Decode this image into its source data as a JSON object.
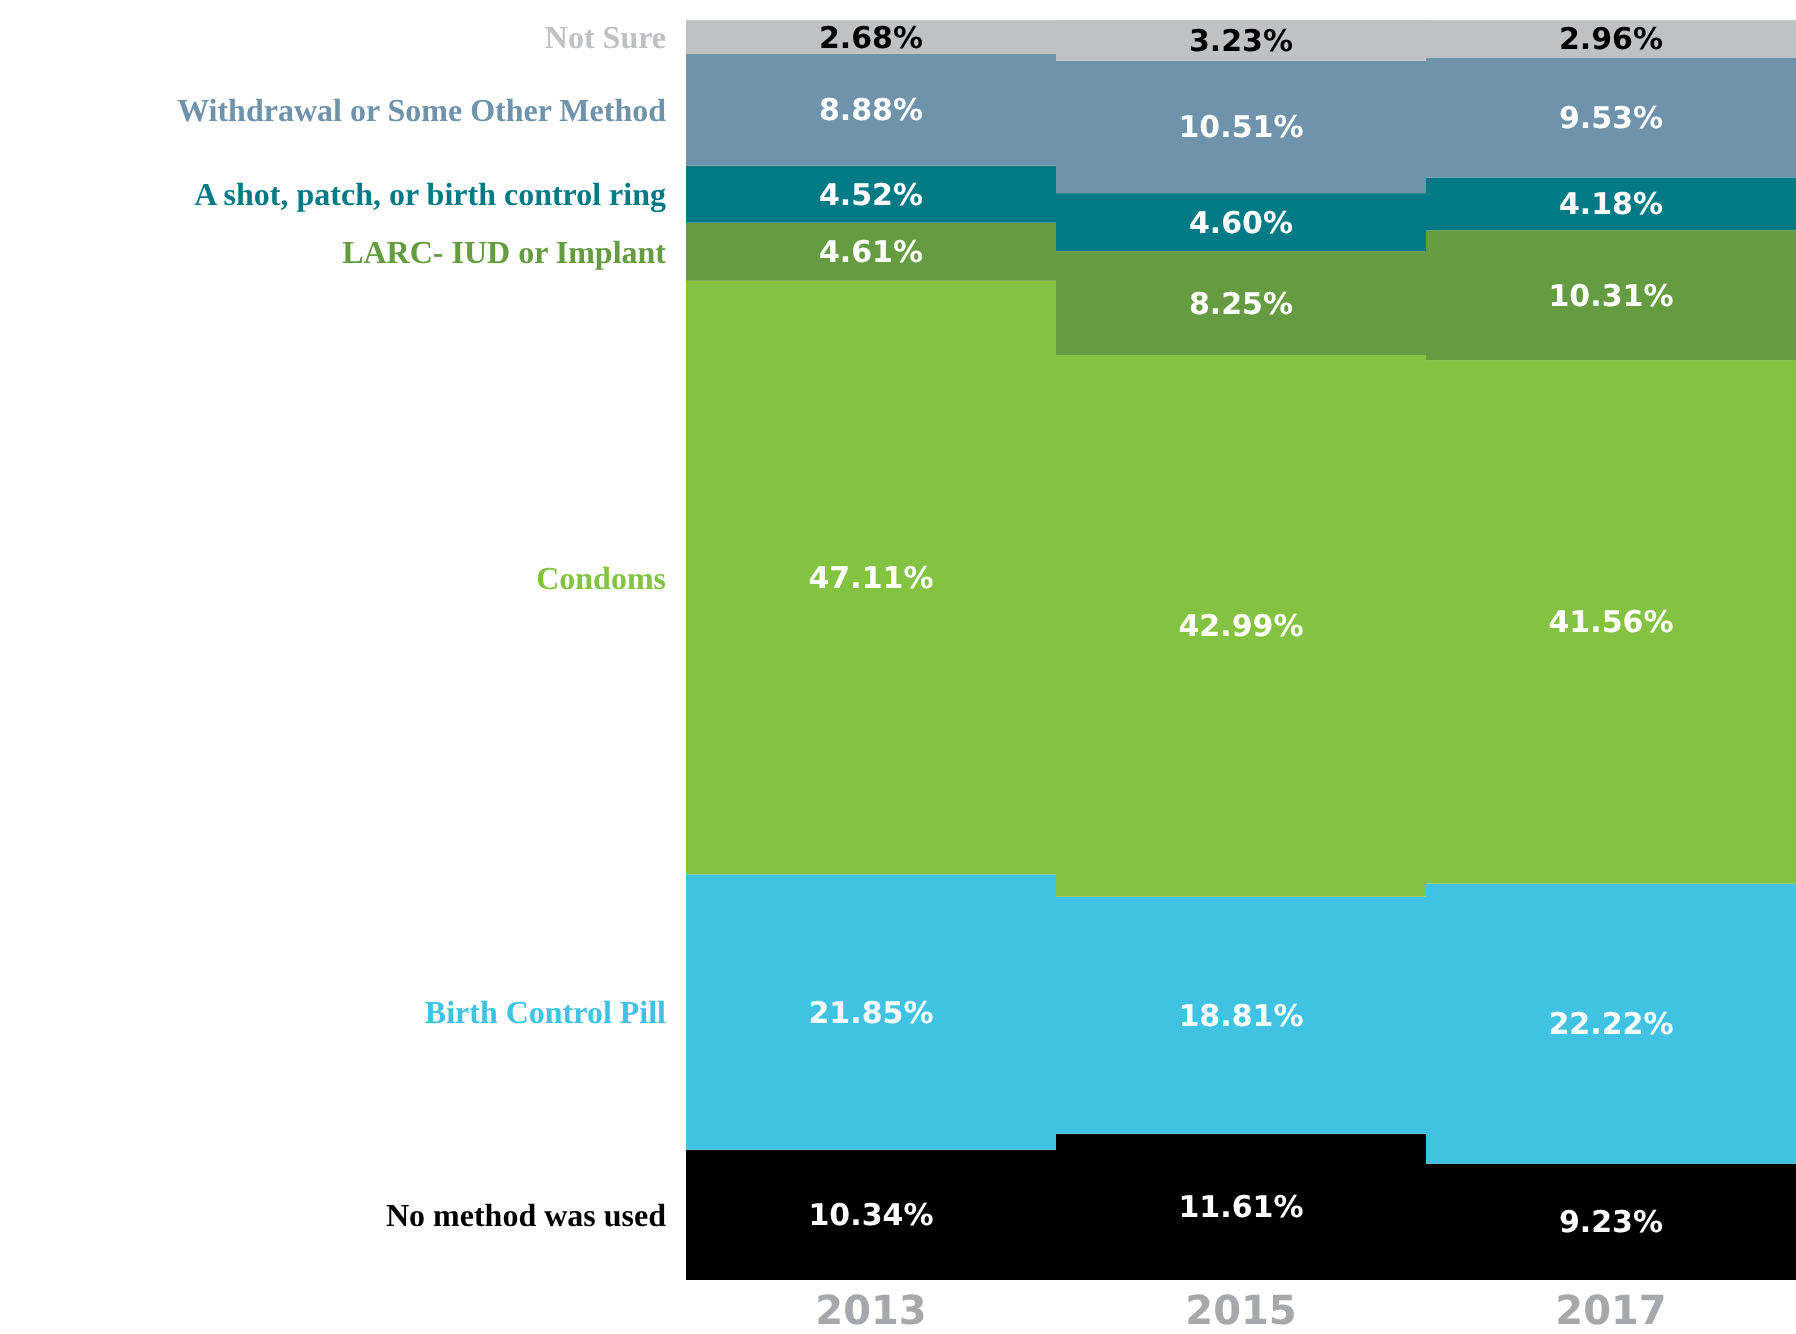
{
  "chart_data": {
    "type": "bar",
    "stacked": true,
    "categories": [
      "2013",
      "2015",
      "2017"
    ],
    "series": [
      {
        "name": "No method was used",
        "color": "#000000",
        "values": [
          10.34,
          11.61,
          9.23
        ],
        "value_labels": [
          "10.34%",
          "11.61%",
          "9.23%"
        ]
      },
      {
        "name": "Birth Control Pill",
        "color": "#40c3e3",
        "values": [
          21.85,
          18.81,
          22.22
        ],
        "value_labels": [
          "21.85%",
          "18.81%",
          "22.22%"
        ]
      },
      {
        "name": "Condoms",
        "color": "#84c341",
        "values": [
          47.11,
          42.99,
          41.56
        ],
        "value_labels": [
          "47.11%",
          "42.99%",
          "41.56%"
        ]
      },
      {
        "name": "LARC- IUD or Implant",
        "color": "#659c41",
        "values": [
          4.61,
          8.25,
          10.31
        ],
        "value_labels": [
          "4.61%",
          "8.25%",
          "10.31%"
        ]
      },
      {
        "name": "A shot, patch, or birth control ring",
        "color": "#007a85",
        "values": [
          4.52,
          4.6,
          4.18
        ],
        "value_labels": [
          "4.52%",
          "4.60%",
          "4.18%"
        ]
      },
      {
        "name": "Withdrawal or Some Other Method",
        "color": "#6e93ab",
        "values": [
          8.88,
          10.51,
          9.53
        ],
        "value_labels": [
          "8.88%",
          "10.51%",
          "9.53%"
        ]
      },
      {
        "name": "Not Sure",
        "color": "#c0c1c3",
        "values": [
          2.68,
          3.23,
          2.96
        ],
        "value_labels": [
          "2.68%",
          "3.23%",
          "2.96%"
        ]
      }
    ]
  }
}
